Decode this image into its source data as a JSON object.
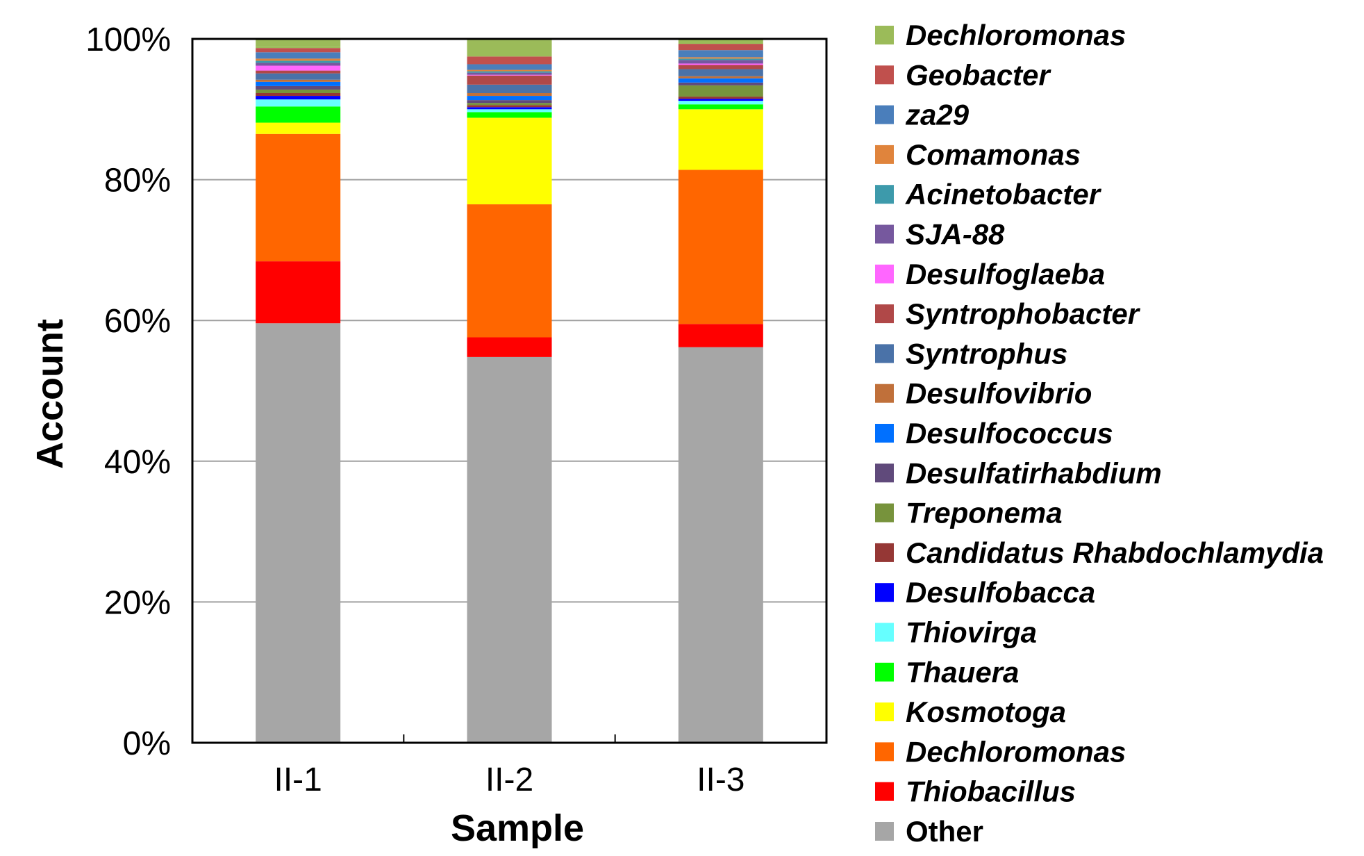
{
  "chart_data": {
    "type": "bar",
    "stacked": true,
    "title": "",
    "xlabel": "Sample",
    "ylabel": "Account",
    "ylim": [
      0,
      100
    ],
    "y_tick_labels": [
      "0%",
      "20%",
      "40%",
      "60%",
      "80%",
      "100%"
    ],
    "grid": "horizontal",
    "legend_position": "right",
    "categories": [
      "II-1",
      "II-2",
      "II-3"
    ],
    "series": [
      {
        "name": "Other",
        "color": "#a6a6a6",
        "values": [
          59.6,
          54.8,
          56.2
        ]
      },
      {
        "name": "Thiobacillus",
        "color": "#ff0000",
        "values": [
          8.8,
          2.8,
          3.3
        ]
      },
      {
        "name": "Dechloromonas",
        "color": "#ff6600",
        "values": [
          18.1,
          18.9,
          21.9
        ]
      },
      {
        "name": "Kosmotoga",
        "color": "#ffff00",
        "values": [
          1.6,
          12.3,
          8.6
        ]
      },
      {
        "name": "Thauera",
        "color": "#00ff00",
        "values": [
          2.3,
          0.8,
          0.7
        ]
      },
      {
        "name": "Thiovirga",
        "color": "#66ffff",
        "values": [
          1.0,
          0.4,
          0.5
        ]
      },
      {
        "name": "Desulfobacca",
        "color": "#0000ff",
        "values": [
          0.5,
          0.3,
          0.3
        ]
      },
      {
        "name": "Candidatus Rhabdochlamydia",
        "color": "#953735",
        "values": [
          0.4,
          0.3,
          0.3
        ]
      },
      {
        "name": "Treponema",
        "color": "#77933c",
        "values": [
          0.5,
          0.3,
          1.6
        ]
      },
      {
        "name": "Desulfatirhabdium",
        "color": "#604a7b",
        "values": [
          0.5,
          0.4,
          0.4
        ]
      },
      {
        "name": "Desulfococcus",
        "color": "#0070ff",
        "values": [
          0.6,
          0.6,
          0.6
        ]
      },
      {
        "name": "Desulfovibrio",
        "color": "#c0703a",
        "values": [
          0.3,
          0.4,
          0.3
        ]
      },
      {
        "name": "Syntrophus",
        "color": "#4a72a8",
        "values": [
          0.9,
          1.2,
          1.0
        ]
      },
      {
        "name": "Syntrophobacter",
        "color": "#b04848",
        "values": [
          0.4,
          1.3,
          0.6
        ]
      },
      {
        "name": "Desulfoglaeba",
        "color": "#ff66ff",
        "values": [
          0.7,
          0.1,
          0.2
        ]
      },
      {
        "name": "SJA-88",
        "color": "#76589e",
        "values": [
          0.4,
          0.3,
          0.5
        ]
      },
      {
        "name": "Acinetobacter",
        "color": "#3d9aab",
        "values": [
          0.3,
          0.2,
          0.2
        ]
      },
      {
        "name": "Comamonas",
        "color": "#e0843c",
        "values": [
          0.3,
          0.2,
          0.2
        ]
      },
      {
        "name": "za29",
        "color": "#4a7ebb",
        "values": [
          0.9,
          0.8,
          1.0
        ]
      },
      {
        "name": "Geobacter",
        "color": "#c0504d",
        "values": [
          0.6,
          1.1,
          0.9
        ]
      },
      {
        "name": "Dechloromonas",
        "color": "#9bbb59",
        "values": [
          0.3,
          2.3,
          0.7
        ]
      }
    ]
  }
}
